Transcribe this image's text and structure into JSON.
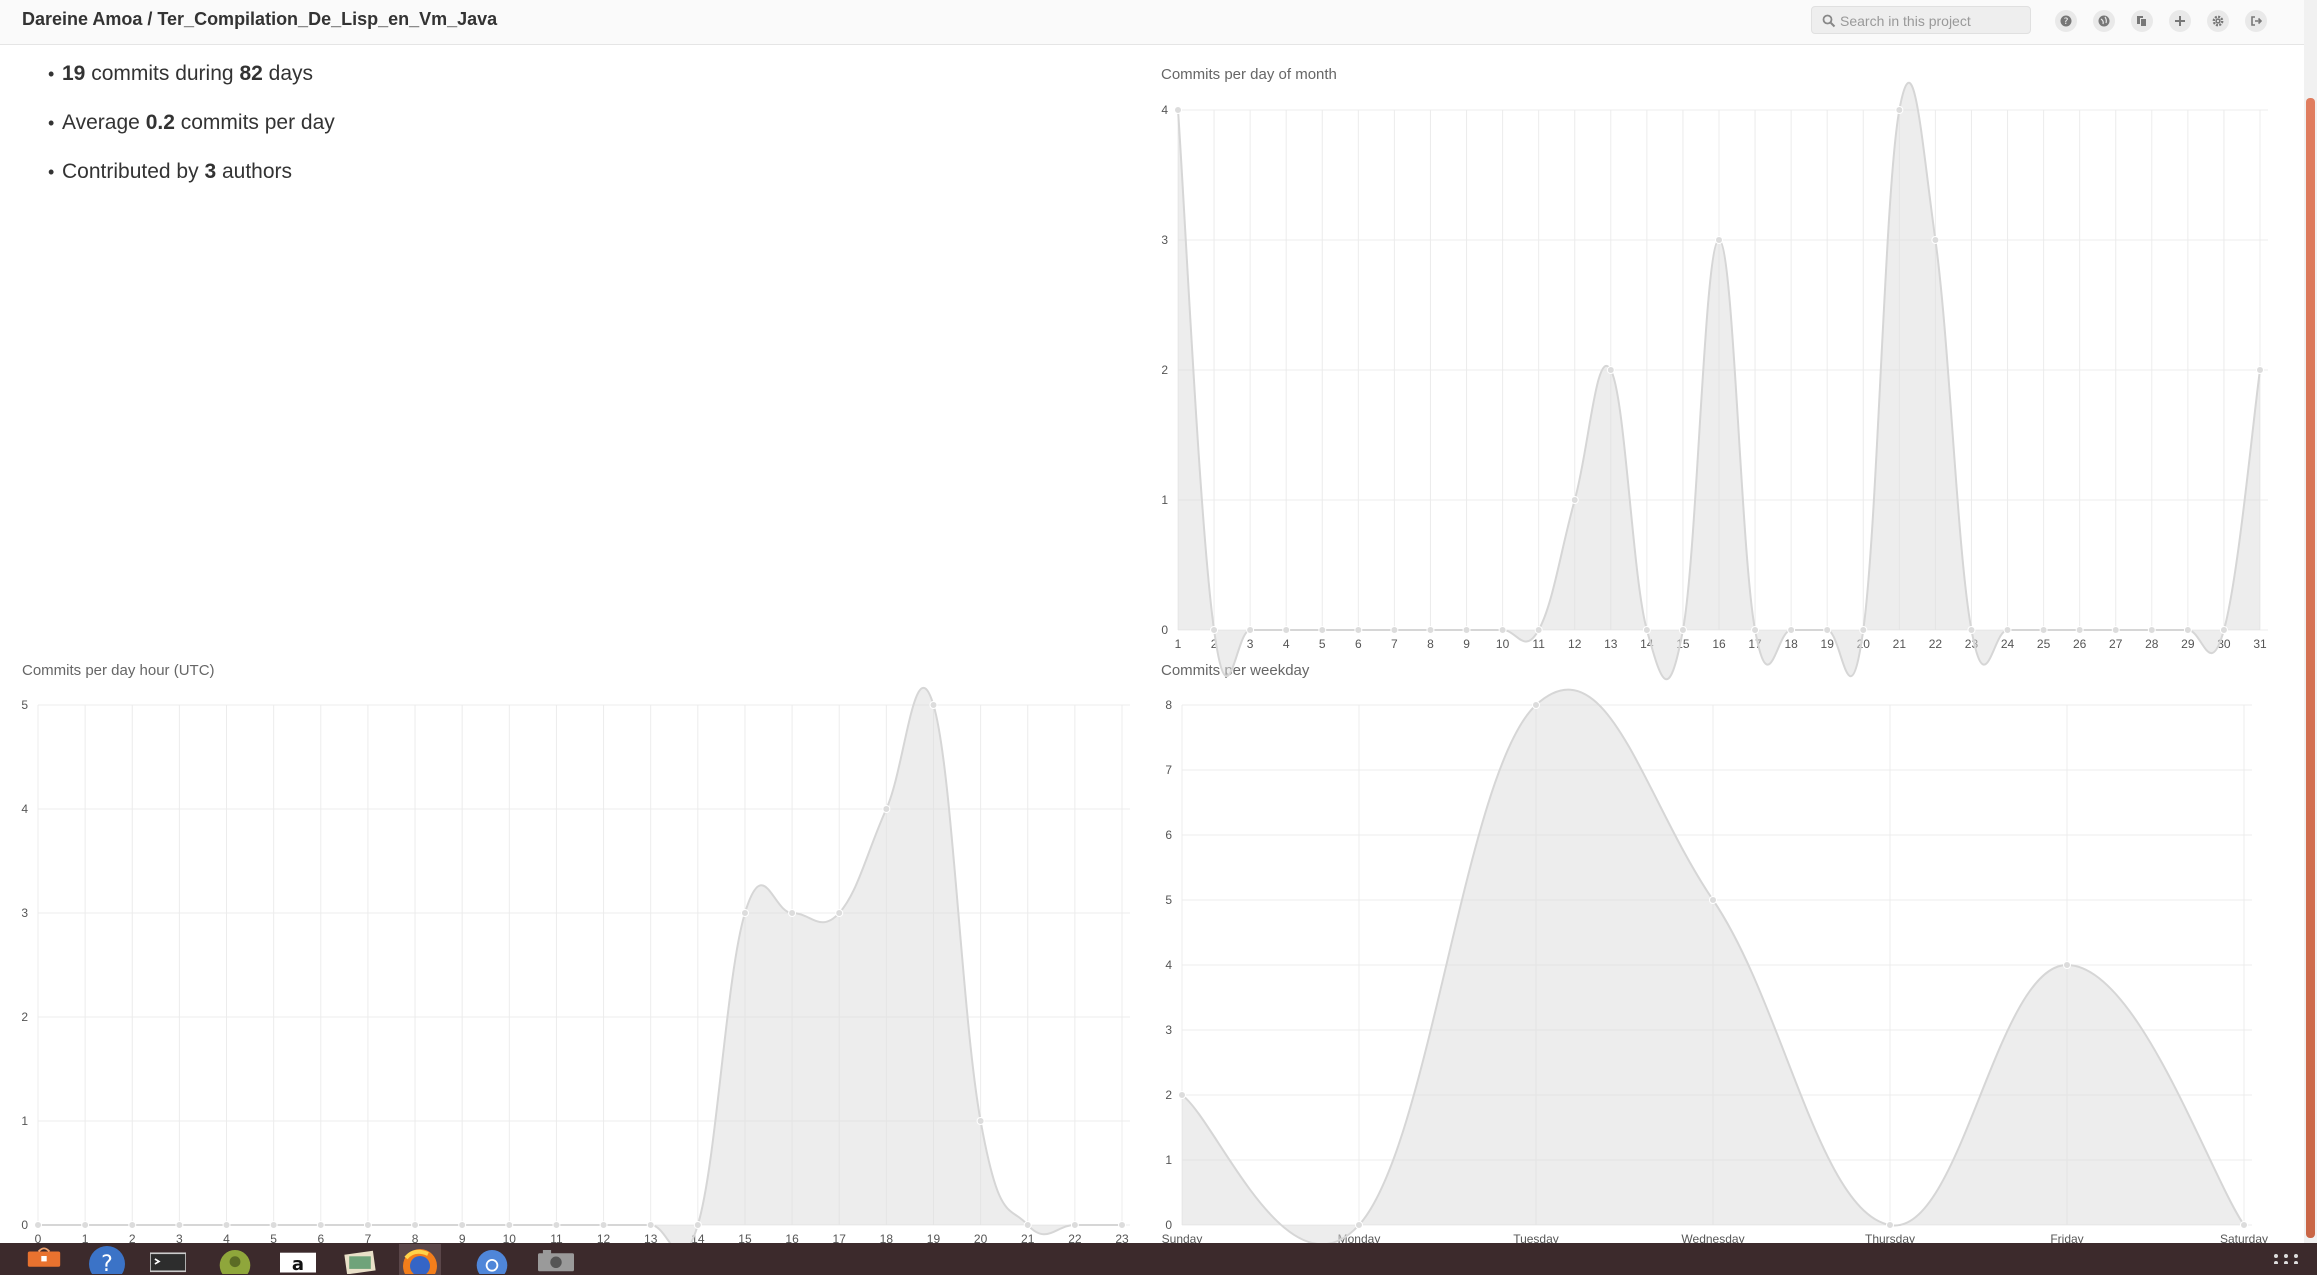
{
  "header": {
    "title": "Dareine Amoa / Ter_Compilation_De_Lisp_en_Vm_Java",
    "search_placeholder": "Search in this project",
    "buttons": [
      "help-icon",
      "globe-icon",
      "copy-icon",
      "plus-icon",
      "gear-icon",
      "sign-out-icon"
    ]
  },
  "stats": {
    "commits": "19",
    "commits_text": "commits during",
    "days": "82",
    "days_text": "days",
    "avg_prefix": "Average",
    "avg": "0.2",
    "avg_suffix": "commits per day",
    "authors_prefix": "Contributed by",
    "authors": "3",
    "authors_suffix": "authors"
  },
  "chart_data": [
    {
      "id": "month",
      "type": "area",
      "title": "Commits per day of month",
      "categories": [
        "1",
        "2",
        "3",
        "4",
        "5",
        "6",
        "7",
        "8",
        "9",
        "10",
        "11",
        "12",
        "13",
        "14",
        "15",
        "16",
        "17",
        "18",
        "19",
        "20",
        "21",
        "22",
        "23",
        "24",
        "25",
        "26",
        "27",
        "28",
        "29",
        "30",
        "31"
      ],
      "values": [
        4,
        0,
        0,
        0,
        0,
        0,
        0,
        0,
        0,
        0,
        0,
        1,
        2,
        0,
        0,
        3,
        0,
        0,
        0,
        0,
        4,
        3,
        0,
        0,
        0,
        0,
        0,
        0,
        0,
        0,
        2
      ],
      "ylim": [
        0,
        4
      ],
      "yticks": [
        "0",
        "1",
        "2",
        "3",
        "4"
      ],
      "grid": true
    },
    {
      "id": "hour",
      "type": "area",
      "title": "Commits per day hour (UTC)",
      "categories": [
        "0",
        "1",
        "2",
        "3",
        "4",
        "5",
        "6",
        "7",
        "8",
        "9",
        "10",
        "11",
        "12",
        "13",
        "14",
        "15",
        "16",
        "17",
        "18",
        "19",
        "20",
        "21",
        "22",
        "23"
      ],
      "values": [
        0,
        0,
        0,
        0,
        0,
        0,
        0,
        0,
        0,
        0,
        0,
        0,
        0,
        0,
        0,
        3,
        3,
        3,
        4,
        5,
        1,
        0,
        0,
        0
      ],
      "ylim": [
        0,
        5
      ],
      "yticks": [
        "0",
        "1",
        "2",
        "3",
        "4",
        "5"
      ],
      "grid": true
    },
    {
      "id": "weekday",
      "type": "area",
      "title": "Commits per weekday",
      "categories": [
        "Sunday",
        "Monday",
        "Tuesday",
        "Wednesday",
        "Thursday",
        "Friday",
        "Saturday"
      ],
      "values": [
        2,
        0,
        8,
        5,
        0,
        4,
        0
      ],
      "ylim": [
        0,
        8
      ],
      "yticks": [
        "0",
        "1",
        "2",
        "3",
        "4",
        "5",
        "6",
        "7",
        "8"
      ],
      "grid": true
    }
  ],
  "taskbar": {
    "apps": [
      "software-center-icon",
      "help-icon",
      "terminal-icon",
      "gimp-icon",
      "amazon-icon",
      "image-viewer-icon",
      "firefox-icon",
      "chromium-icon",
      "camera-icon"
    ],
    "active": "firefox-icon",
    "colors": {
      "background": "#3c2a2c",
      "accent": "#e07d5f"
    }
  }
}
